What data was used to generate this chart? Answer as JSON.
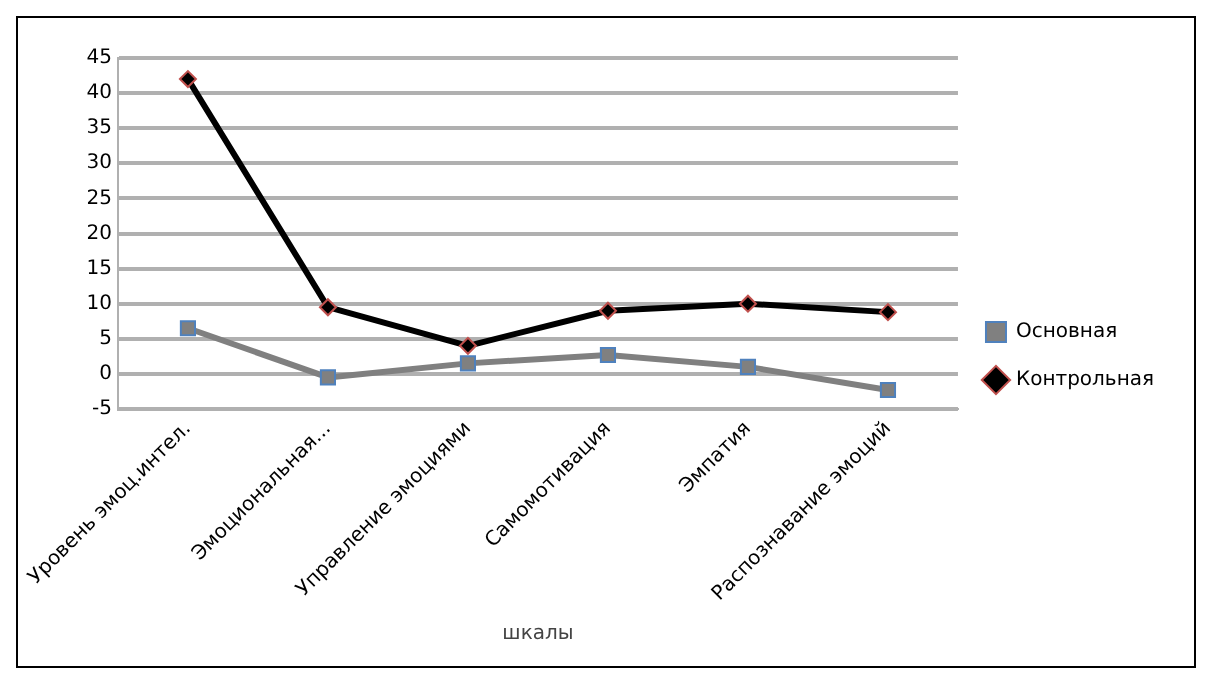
{
  "chart_data": {
    "type": "line",
    "xlabel": "шкалы",
    "categories": [
      "Уровень эмоц.интел.",
      "Эмоциональная...",
      "Управление эмоциями",
      "Самомотивация",
      "Эмпатия",
      "Распознавание эмоций"
    ],
    "series": [
      {
        "name": "Основная",
        "color": "#808080",
        "marker": "square",
        "values": [
          6.5,
          -0.5,
          1.5,
          2.7,
          1,
          -2.3
        ]
      },
      {
        "name": "Контрольная",
        "color": "#000000",
        "marker": "diamond",
        "values": [
          42,
          9.5,
          4,
          9,
          10,
          8.8
        ]
      }
    ],
    "ylim": [
      -5,
      45
    ],
    "yticks": [
      -5,
      0,
      5,
      10,
      15,
      20,
      25,
      30,
      35,
      40,
      45
    ],
    "grid": "y",
    "legend": "right"
  }
}
